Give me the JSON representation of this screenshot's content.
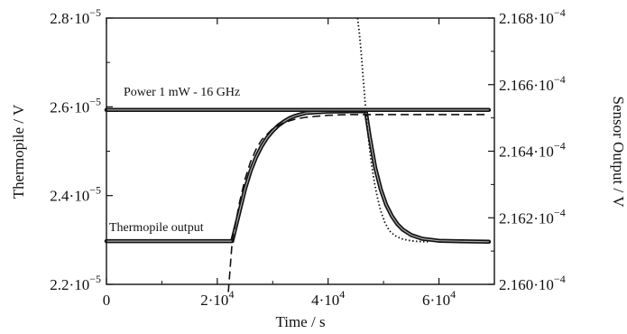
{
  "chart_data": {
    "type": "line",
    "x_axis": {
      "label": "Time / s",
      "range": [
        0,
        70000
      ],
      "ticks": [
        {
          "value": 0,
          "label": "0"
        },
        {
          "value": 20000,
          "label": "2·10",
          "exp": "4"
        },
        {
          "value": 40000,
          "label": "4·10",
          "exp": "4"
        },
        {
          "value": 60000,
          "label": "6·10",
          "exp": "4"
        }
      ]
    },
    "y_left": {
      "label": "Thermopile / V",
      "range": [
        2.2e-05,
        2.8e-05
      ],
      "ticks": [
        {
          "value": 2.2e-05,
          "label": "2.2·10",
          "exp": "−5"
        },
        {
          "value": 2.4e-05,
          "label": "2.4·10",
          "exp": "−5"
        },
        {
          "value": 2.6e-05,
          "label": "2.6·10",
          "exp": "−5"
        },
        {
          "value": 2.8e-05,
          "label": "2.8·10",
          "exp": "−5"
        }
      ]
    },
    "y_right": {
      "label": "Sensor Output / V",
      "range": [
        0.000216,
        0.0002168
      ],
      "ticks": [
        {
          "value": 0.000216,
          "label": "2.160·10",
          "exp": "−4"
        },
        {
          "value": 0.0002162,
          "label": "2.162·10",
          "exp": "−4"
        },
        {
          "value": 0.0002164,
          "label": "2.164·10",
          "exp": "−4"
        },
        {
          "value": 0.0002166,
          "label": "2.166·10",
          "exp": "−4"
        },
        {
          "value": 0.0002168,
          "label": "2.168·10",
          "exp": "−4"
        }
      ]
    },
    "annotations": [
      {
        "text": "Power 1 mW - 16 GHz"
      },
      {
        "text": "Thermopile output"
      }
    ],
    "series": [
      {
        "axis": "right",
        "style": "thick-dots",
        "x": [
          0,
          10000,
          20000,
          22700,
          24000,
          25000,
          26000,
          27000,
          28000,
          29000,
          30000,
          31000,
          32000,
          33000,
          34000,
          36000,
          40000,
          44000,
          46800,
          47500,
          48500,
          49500,
          50500,
          51500,
          52500,
          53500,
          55000,
          57000,
          60000,
          65000,
          69000
        ],
        "y": [
          0.00021613,
          0.00021613,
          0.00021613,
          0.00021613,
          0.000216218,
          0.000216286,
          0.00021634,
          0.000216382,
          0.000216415,
          0.000216441,
          0.000216461,
          0.000216477,
          0.000216489,
          0.000216499,
          0.000216506,
          0.000216515,
          0.000216519,
          0.00021652,
          0.00021652,
          0.000216443,
          0.000216351,
          0.000216285,
          0.000216238,
          0.000216205,
          0.000216181,
          0.000216164,
          0.000216148,
          0.000216137,
          0.000216131,
          0.000216129,
          0.000216128
        ]
      },
      {
        "axis": "left",
        "style": "thick-dots",
        "x": [
          0,
          10000,
          20000,
          30000,
          40000,
          50000,
          60000,
          69000
        ],
        "y": [
          2.593e-05,
          2.593e-05,
          2.593e-05,
          2.593e-05,
          2.593e-05,
          2.593e-05,
          2.593e-05,
          2.593e-05
        ]
      },
      {
        "axis": "right",
        "style": "dashed",
        "x": [
          22000,
          22700,
          24000,
          25000,
          26000,
          27000,
          28000,
          30000,
          32000,
          34000,
          36000,
          40000,
          44000,
          46800,
          50000,
          55000,
          60000,
          65000,
          69000
        ],
        "y": [
          0.000215977,
          0.00021613,
          0.000216245,
          0.000216316,
          0.000216368,
          0.000216406,
          0.000216434,
          0.000216468,
          0.000216486,
          0.000216496,
          0.000216502,
          0.000216508,
          0.00021651,
          0.00021651,
          0.00021651,
          0.00021651,
          0.00021651,
          0.00021651,
          0.00021651
        ]
      },
      {
        "axis": "right",
        "style": "dotted",
        "x": [
          45300,
          45600,
          45900,
          46200,
          46500,
          46800,
          47100,
          47500,
          47900,
          48400,
          48900,
          49500,
          50200,
          51000,
          52000,
          53200,
          54500,
          56000,
          58000
        ],
        "y": [
          0.0002168,
          0.000216761,
          0.000216707,
          0.000216647,
          0.000216585,
          0.00021652,
          0.000216467,
          0.000216405,
          0.000216354,
          0.000216302,
          0.00021626,
          0.00021622,
          0.000216187,
          0.000216162,
          0.000216147,
          0.000216137,
          0.000216132,
          0.000216129,
          0.000216128
        ]
      }
    ]
  }
}
